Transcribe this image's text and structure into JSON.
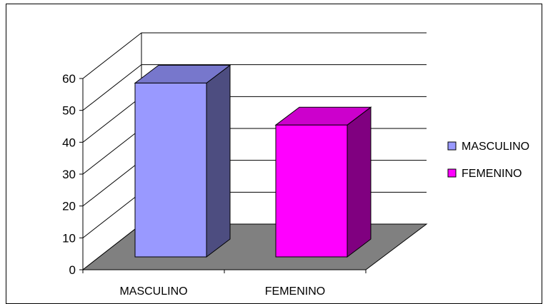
{
  "chart_data": {
    "type": "bar",
    "categories": [
      "MASCULINO",
      "FEMENINO"
    ],
    "values": [
      58,
      44
    ],
    "ylim": [
      0,
      60
    ],
    "yticks": [
      0,
      10,
      20,
      30,
      40,
      50,
      60
    ],
    "grid": true,
    "legend_position": "right",
    "legend": [
      {
        "label": "MASCULINO",
        "color": "#9999ff"
      },
      {
        "label": "FEMENINO",
        "color": "#ff00ff"
      }
    ],
    "colors": {
      "floor": "#808080",
      "masculino_front": "#9999ff",
      "masculino_top": "#7777cc",
      "masculino_side": "#4d4d80",
      "femenino_front": "#ff00ff",
      "femenino_top": "#cc00cc",
      "femenino_side": "#800080"
    }
  }
}
